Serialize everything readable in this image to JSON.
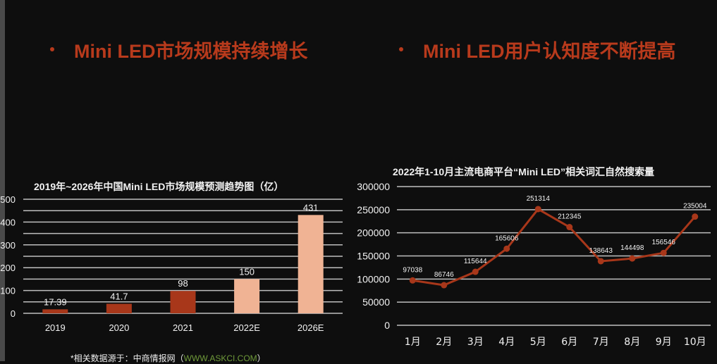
{
  "headings": {
    "left": "Mini LED市场规模持续增长",
    "right": "Mini LED用户认知度不断提高"
  },
  "colors": {
    "accent": "#b83a1c",
    "bar_actual": "#a8371a",
    "bar_forecast": "#f0b394",
    "line": "#a8371a",
    "grid": "#bfbfbf",
    "text": "#f2f2f2"
  },
  "source": {
    "prefix": "*相关数据源于：中商情报网（",
    "link": "WWW.ASKCI.COM",
    "suffix": "）"
  },
  "chart_data": [
    {
      "type": "bar",
      "title": "2019年~2026年中国Mini LED市场规模预测趋势图（亿）",
      "categories": [
        "2019",
        "2020",
        "2021",
        "2022E",
        "2026E"
      ],
      "values": [
        17.39,
        41.7,
        98,
        150,
        431
      ],
      "value_labels": [
        "17.39",
        "41.7",
        "98",
        "150",
        "431"
      ],
      "forecast": [
        false,
        false,
        false,
        true,
        true
      ],
      "xlabel": "",
      "ylabel": "亿",
      "ylim": [
        0,
        500
      ],
      "yticks": [
        0,
        100,
        200,
        300,
        400,
        500
      ],
      "grid": true
    },
    {
      "type": "line",
      "title": "2022年1-10月主流电商平台“Mini LED”相关词汇自然搜索量",
      "categories": [
        "1月",
        "2月",
        "3月",
        "4月",
        "5月",
        "6月",
        "7月",
        "8月",
        "9月",
        "10月"
      ],
      "values": [
        97038,
        86746,
        115644,
        165606,
        251314,
        212345,
        138643,
        144498,
        156546,
        235004
      ],
      "value_labels": [
        "97038",
        "86746",
        "115644",
        "165606",
        "251314",
        "212345",
        "138643",
        "144498",
        "156546",
        "235004"
      ],
      "xlabel": "",
      "ylabel": "",
      "ylim": [
        0,
        300000
      ],
      "yticks": [
        0,
        50000,
        100000,
        150000,
        200000,
        250000,
        300000
      ],
      "ytick_labels": [
        "0",
        "50000",
        "100000",
        "150000",
        "200000",
        "250000",
        "300000"
      ],
      "grid": true
    }
  ]
}
